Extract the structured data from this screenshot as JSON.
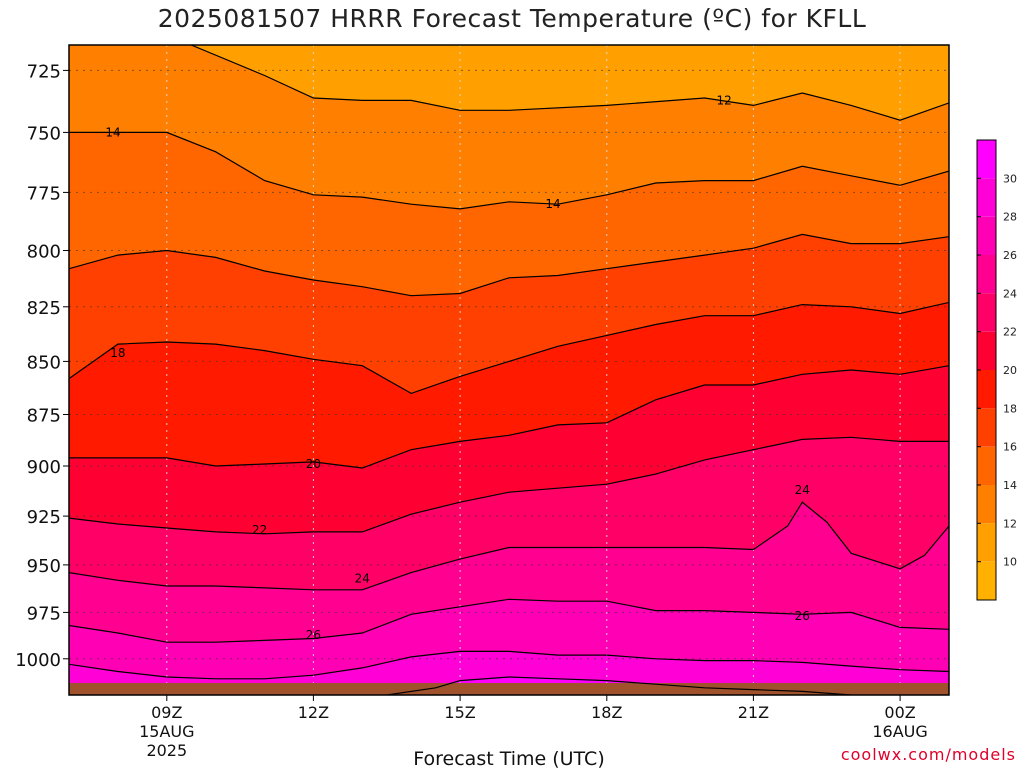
{
  "title": "2025081507 HRRR Forecast Temperature (ºC) for KFLL",
  "credit": "coolwx.com/models",
  "colors": {
    "band_10_12": "#ffa000",
    "band_12_14": "#ff8000",
    "band_14_16": "#ff6600",
    "band_16_18": "#ff4000",
    "band_18_20": "#ff1a00",
    "band_20_22": "#ff0033",
    "band_22_24": "#ff0066",
    "band_24_26": "#ff0090",
    "band_26_28": "#ff00b4",
    "band_28_30": "#ff00d6",
    "band_30_32": "#ff00ff",
    "ground": "#a0522d",
    "contour": "#000000",
    "grid": "#8899aa"
  },
  "chart_data": {
    "type": "heatmap",
    "title": "2025081507 HRRR Forecast Temperature (ºC) for KFLL",
    "xlabel": "Forecast Time (UTC)",
    "ylabel": "",
    "x_ticks": [
      {
        "time": "09Z",
        "sub1": "15AUG",
        "sub2": "2025",
        "hour": 9
      },
      {
        "time": "12Z",
        "sub1": "",
        "sub2": "",
        "hour": 12
      },
      {
        "time": "15Z",
        "sub1": "",
        "sub2": "",
        "hour": 15
      },
      {
        "time": "18Z",
        "sub1": "",
        "sub2": "",
        "hour": 18
      },
      {
        "time": "21Z",
        "sub1": "",
        "sub2": "",
        "hour": 21
      },
      {
        "time": "00Z",
        "sub1": "16AUG",
        "sub2": "",
        "hour": 24
      }
    ],
    "xlim_hours": [
      7,
      25
    ],
    "y_ticks": [
      725,
      750,
      775,
      800,
      825,
      850,
      875,
      900,
      925,
      950,
      975,
      1000
    ],
    "ylim_hPa": [
      715,
      1020
    ],
    "y_log_scale": true,
    "grid": true,
    "colorbar": {
      "ticks": [
        10,
        12,
        14,
        16,
        18,
        20,
        22,
        24,
        26,
        28,
        30
      ],
      "range": [
        8,
        32
      ],
      "placement": "right"
    },
    "contour_levels": [
      12,
      14,
      16,
      18,
      20,
      22,
      24,
      26,
      28,
      30
    ],
    "contour_labels": [
      {
        "text": "12",
        "hour": 20.4,
        "p": 737
      },
      {
        "text": "14",
        "hour": 7.9,
        "p": 750
      },
      {
        "text": "14",
        "hour": 16.9,
        "p": 780
      },
      {
        "text": "18",
        "hour": 8.0,
        "p": 846
      },
      {
        "text": "20",
        "hour": 12.0,
        "p": 899
      },
      {
        "text": "22",
        "hour": 10.9,
        "p": 932
      },
      {
        "text": "24",
        "hour": 13.0,
        "p": 957
      },
      {
        "text": "24",
        "hour": 22.0,
        "p": 912
      },
      {
        "text": "26",
        "hour": 12.0,
        "p": 987
      },
      {
        "text": "26",
        "hour": 22.0,
        "p": 977
      }
    ],
    "contours": [
      {
        "level": 12,
        "points": [
          [
            9.5,
            715
          ],
          [
            11,
            727
          ],
          [
            12,
            736
          ],
          [
            13,
            737
          ],
          [
            14,
            737
          ],
          [
            15,
            741
          ],
          [
            16,
            741
          ],
          [
            18,
            739
          ],
          [
            20,
            736
          ],
          [
            21,
            739
          ],
          [
            22,
            734
          ],
          [
            23,
            739
          ],
          [
            24,
            745
          ],
          [
            25,
            738
          ]
        ]
      },
      {
        "level": 14,
        "points": [
          [
            7,
            750
          ],
          [
            8,
            750
          ],
          [
            9,
            750
          ],
          [
            10,
            758
          ],
          [
            11,
            770
          ],
          [
            12,
            776
          ],
          [
            13,
            777
          ],
          [
            14,
            780
          ],
          [
            15,
            782
          ],
          [
            16,
            779
          ],
          [
            17,
            780
          ],
          [
            18,
            776
          ],
          [
            19,
            771
          ],
          [
            20,
            770
          ],
          [
            21,
            770
          ],
          [
            22,
            764
          ],
          [
            23,
            768
          ],
          [
            24,
            772
          ],
          [
            25,
            766
          ]
        ]
      },
      {
        "level": 16,
        "points": [
          [
            7,
            808
          ],
          [
            8,
            802
          ],
          [
            9,
            800
          ],
          [
            10,
            803
          ],
          [
            11,
            809
          ],
          [
            12,
            813
          ],
          [
            13,
            816
          ],
          [
            14,
            820
          ],
          [
            15,
            819
          ],
          [
            16,
            812
          ],
          [
            17,
            811
          ],
          [
            18,
            808
          ],
          [
            19,
            805
          ],
          [
            20,
            802
          ],
          [
            21,
            799
          ],
          [
            22,
            793
          ],
          [
            23,
            797
          ],
          [
            24,
            797
          ],
          [
            25,
            794
          ]
        ]
      },
      {
        "level": 18,
        "points": [
          [
            7,
            858
          ],
          [
            8,
            842
          ],
          [
            9,
            841
          ],
          [
            10,
            842
          ],
          [
            11,
            845
          ],
          [
            12,
            849
          ],
          [
            13,
            852
          ],
          [
            14,
            865
          ],
          [
            15,
            857
          ],
          [
            16,
            850
          ],
          [
            17,
            843
          ],
          [
            18,
            838
          ],
          [
            19,
            833
          ],
          [
            20,
            829
          ],
          [
            21,
            829
          ],
          [
            22,
            824
          ],
          [
            23,
            825
          ],
          [
            24,
            828
          ],
          [
            25,
            823
          ]
        ]
      },
      {
        "level": 20,
        "points": [
          [
            7,
            896
          ],
          [
            8,
            896
          ],
          [
            9,
            896
          ],
          [
            10,
            900
          ],
          [
            11,
            899
          ],
          [
            12,
            898
          ],
          [
            13,
            901
          ],
          [
            14,
            892
          ],
          [
            15,
            888
          ],
          [
            16,
            885
          ],
          [
            17,
            880
          ],
          [
            18,
            879
          ],
          [
            19,
            868
          ],
          [
            20,
            861
          ],
          [
            21,
            861
          ],
          [
            22,
            856
          ],
          [
            23,
            854
          ],
          [
            24,
            856
          ],
          [
            25,
            852
          ]
        ]
      },
      {
        "level": 22,
        "points": [
          [
            7,
            926
          ],
          [
            8,
            929
          ],
          [
            9,
            931
          ],
          [
            10,
            933
          ],
          [
            11,
            934
          ],
          [
            12,
            933
          ],
          [
            13,
            933
          ],
          [
            14,
            924
          ],
          [
            15,
            918
          ],
          [
            16,
            913
          ],
          [
            17,
            911
          ],
          [
            18,
            909
          ],
          [
            19,
            904
          ],
          [
            20,
            897
          ],
          [
            21,
            892
          ],
          [
            22,
            887
          ],
          [
            23,
            886
          ],
          [
            24,
            888
          ],
          [
            25,
            888
          ]
        ]
      },
      {
        "level": 24,
        "points": [
          [
            7,
            954
          ],
          [
            8,
            958
          ],
          [
            9,
            961
          ],
          [
            10,
            961
          ],
          [
            11,
            962
          ],
          [
            12,
            963
          ],
          [
            13,
            963
          ],
          [
            14,
            954
          ],
          [
            15,
            947
          ],
          [
            16,
            941
          ],
          [
            17,
            941
          ],
          [
            18,
            941
          ],
          [
            19,
            941
          ],
          [
            20,
            941
          ],
          [
            21,
            942
          ],
          [
            21.7,
            930
          ],
          [
            22,
            918
          ],
          [
            22.5,
            928
          ],
          [
            23,
            944
          ],
          [
            24,
            952
          ],
          [
            24.5,
            945
          ],
          [
            25,
            930
          ]
        ]
      },
      {
        "level": 26,
        "points": [
          [
            7,
            982
          ],
          [
            8,
            986
          ],
          [
            9,
            991
          ],
          [
            10,
            991
          ],
          [
            11,
            990
          ],
          [
            12,
            989
          ],
          [
            13,
            986
          ],
          [
            14,
            976
          ],
          [
            15,
            972
          ],
          [
            16,
            968
          ],
          [
            17,
            969
          ],
          [
            18,
            969
          ],
          [
            19,
            974
          ],
          [
            20,
            974
          ],
          [
            21,
            975
          ],
          [
            22,
            976
          ],
          [
            23,
            975
          ],
          [
            24,
            983
          ],
          [
            25,
            984
          ]
        ]
      },
      {
        "level": 28,
        "points": [
          [
            7,
            1003
          ],
          [
            8,
            1007
          ],
          [
            9,
            1010
          ],
          [
            10,
            1011
          ],
          [
            11,
            1011
          ],
          [
            12,
            1009
          ],
          [
            13,
            1005
          ],
          [
            14,
            999
          ],
          [
            15,
            996
          ],
          [
            16,
            996
          ],
          [
            17,
            998
          ],
          [
            18,
            998
          ],
          [
            19,
            1000
          ],
          [
            20,
            1001
          ],
          [
            21,
            1001
          ],
          [
            22,
            1002
          ],
          [
            23,
            1004
          ],
          [
            24,
            1006
          ],
          [
            25,
            1007
          ]
        ]
      },
      {
        "level": 30,
        "points": [
          [
            13.5,
            1020
          ],
          [
            14.5,
            1016
          ],
          [
            15,
            1012
          ],
          [
            16,
            1010
          ],
          [
            17,
            1011
          ],
          [
            18,
            1012
          ],
          [
            19,
            1014
          ],
          [
            20,
            1016
          ],
          [
            21,
            1017
          ],
          [
            22,
            1018
          ],
          [
            23,
            1020
          ]
        ]
      }
    ]
  }
}
